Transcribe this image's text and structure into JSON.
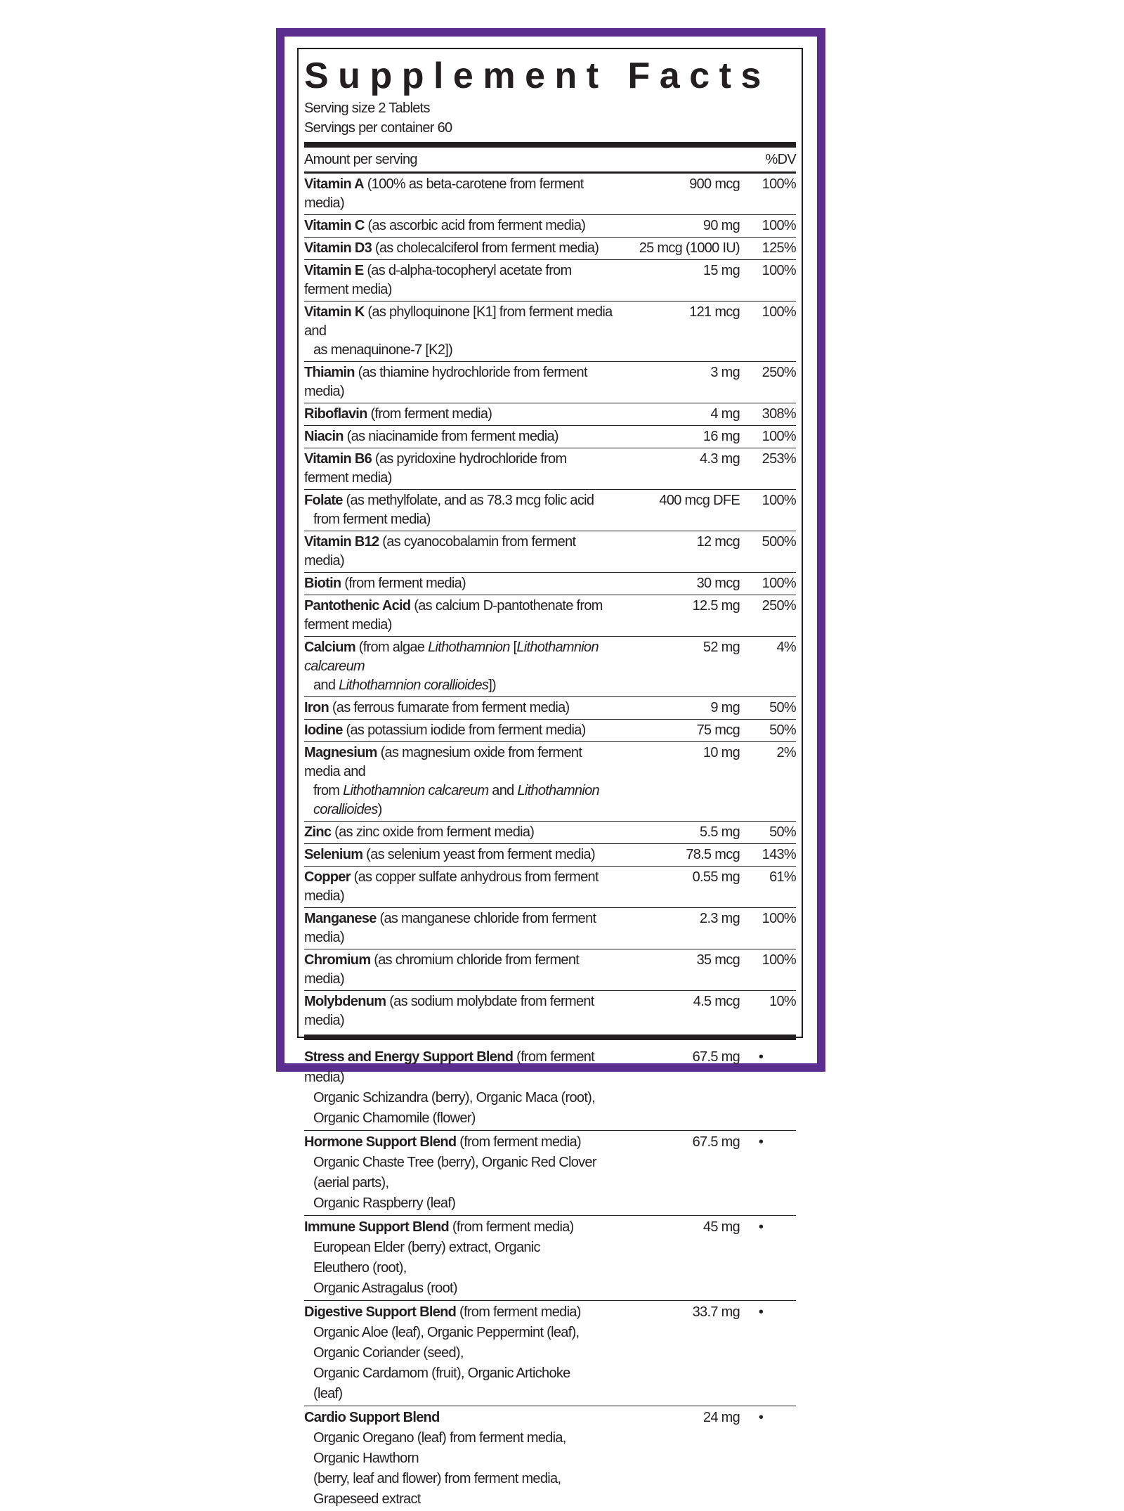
{
  "title": "Supplement Facts",
  "serving_size": "Serving size 2 Tablets",
  "servings_per_container": "Servings per container 60",
  "header": {
    "amount": "Amount per serving",
    "dv": "%DV"
  },
  "colors": {
    "frame": "#5b2d8e",
    "text": "#231f20"
  },
  "nutrients": [
    {
      "name": "Vitamin A",
      "desc": [
        [
          {
            "t": " (100% as beta-carotene from ferment media)"
          }
        ]
      ],
      "amount": "900 mcg",
      "dv": "100%"
    },
    {
      "name": "Vitamin C",
      "desc": [
        [
          {
            "t": " (as ascorbic acid from ferment media)"
          }
        ]
      ],
      "amount": "90 mg",
      "dv": "100%"
    },
    {
      "name": "Vitamin D3",
      "desc": [
        [
          {
            "t": " (as cholecalciferol from ferment media)"
          }
        ]
      ],
      "amount": "25 mcg (1000 IU)",
      "dv": "125%"
    },
    {
      "name": "Vitamin E",
      "desc": [
        [
          {
            "t": " (as d-alpha-tocopheryl acetate from ferment media)"
          }
        ]
      ],
      "amount": "15 mg",
      "dv": "100%"
    },
    {
      "name": "Vitamin K",
      "desc": [
        [
          {
            "t": " (as phylloquinone [K1] from ferment media and"
          }
        ],
        [
          {
            "t": "as menaquinone-7 [K2])"
          }
        ]
      ],
      "amount": "121 mcg",
      "dv": "100%"
    },
    {
      "name": "Thiamin",
      "desc": [
        [
          {
            "t": " (as thiamine hydrochloride from ferment media)"
          }
        ]
      ],
      "amount": "3 mg",
      "dv": "250%"
    },
    {
      "name": "Riboflavin",
      "desc": [
        [
          {
            "t": " (from ferment media)"
          }
        ]
      ],
      "amount": "4 mg",
      "dv": "308%"
    },
    {
      "name": "Niacin",
      "desc": [
        [
          {
            "t": " (as niacinamide from ferment media)"
          }
        ]
      ],
      "amount": "16 mg",
      "dv": "100%"
    },
    {
      "name": "Vitamin B6",
      "desc": [
        [
          {
            "t": " (as pyridoxine hydrochloride from ferment media)"
          }
        ]
      ],
      "amount": "4.3 mg",
      "dv": "253%"
    },
    {
      "name": "Folate",
      "desc": [
        [
          {
            "t": " (as methylfolate, and as 78.3 mcg folic acid"
          }
        ],
        [
          {
            "t": "from ferment media)"
          }
        ]
      ],
      "amount": "400 mcg DFE",
      "dv": "100%"
    },
    {
      "name": "Vitamin B12",
      "desc": [
        [
          {
            "t": " (as cyanocobalamin from ferment media)"
          }
        ]
      ],
      "amount": "12 mcg",
      "dv": "500%"
    },
    {
      "name": "Biotin",
      "desc": [
        [
          {
            "t": " (from ferment media)"
          }
        ]
      ],
      "amount": "30 mcg",
      "dv": "100%"
    },
    {
      "name": "Pantothenic Acid",
      "desc": [
        [
          {
            "t": " (as calcium D-pantothenate from ferment media)"
          }
        ]
      ],
      "amount": "12.5 mg",
      "dv": "250%"
    },
    {
      "name": "Calcium",
      "desc": [
        [
          {
            "t": " (from algae "
          },
          {
            "t": "Lithothamnion",
            "i": true
          },
          {
            "t": " ["
          },
          {
            "t": "Lithothamnion calcareum",
            "i": true
          }
        ],
        [
          {
            "t": "and "
          },
          {
            "t": "Lithothamnion corallioides",
            "i": true
          },
          {
            "t": "])"
          }
        ]
      ],
      "amount": "52 mg",
      "dv": "4%"
    },
    {
      "name": "Iron",
      "desc": [
        [
          {
            "t": " (as ferrous fumarate from ferment media)"
          }
        ]
      ],
      "amount": "9 mg",
      "dv": "50%"
    },
    {
      "name": "Iodine",
      "desc": [
        [
          {
            "t": " (as potassium iodide from ferment media)"
          }
        ]
      ],
      "amount": "75 mcg",
      "dv": "50%"
    },
    {
      "name": "Magnesium",
      "desc": [
        [
          {
            "t": " (as magnesium oxide from ferment media and"
          }
        ],
        [
          {
            "t": "from "
          },
          {
            "t": "Lithothamnion calcareum",
            "i": true
          },
          {
            "t": " and "
          },
          {
            "t": "Lithothamnion corallioides",
            "i": true
          },
          {
            "t": ")"
          }
        ]
      ],
      "amount": "10 mg",
      "dv": "2%"
    },
    {
      "name": "Zinc",
      "desc": [
        [
          {
            "t": " (as zinc oxide from ferment media)"
          }
        ]
      ],
      "amount": "5.5 mg",
      "dv": "50%"
    },
    {
      "name": "Selenium",
      "desc": [
        [
          {
            "t": " (as selenium yeast from ferment media)"
          }
        ]
      ],
      "amount": "78.5 mcg",
      "dv": "143%"
    },
    {
      "name": "Copper",
      "desc": [
        [
          {
            "t": " (as copper sulfate anhydrous from ferment media)"
          }
        ]
      ],
      "amount": "0.55 mg",
      "dv": "61%"
    },
    {
      "name": "Manganese",
      "desc": [
        [
          {
            "t": " (as manganese chloride from ferment media)"
          }
        ]
      ],
      "amount": "2.3 mg",
      "dv": "100%"
    },
    {
      "name": "Chromium",
      "desc": [
        [
          {
            "t": " (as chromium chloride from ferment media)"
          }
        ]
      ],
      "amount": "35 mcg",
      "dv": "100%"
    },
    {
      "name": "Molybdenum",
      "desc": [
        [
          {
            "t": " (as sodium molybdate from ferment media)"
          }
        ]
      ],
      "amount": "4.5 mcg",
      "dv": "10%"
    }
  ],
  "blends": [
    {
      "name": "Stress and Energy Support Blend",
      "note": " (from ferment media)",
      "amount": "67.5 mg",
      "dv": "•",
      "lines": [
        "Organic Schizandra (berry), Organic Maca (root), Organic Chamomile (flower)"
      ]
    },
    {
      "name": "Hormone Support Blend",
      "note": " (from ferment media)",
      "amount": "67.5 mg",
      "dv": "•",
      "lines": [
        "Organic Chaste Tree (berry), Organic Red Clover (aerial parts),",
        "Organic Raspberry (leaf)"
      ]
    },
    {
      "name": "Immune Support Blend",
      "note": " (from ferment media)",
      "amount": "45 mg",
      "dv": "•",
      "lines": [
        "European Elder (berry) extract, Organic Eleuthero (root),",
        "Organic Astragalus (root)"
      ]
    },
    {
      "name": "Digestive Support Blend",
      "note": " (from ferment media)",
      "amount": "33.7 mg",
      "dv": "•",
      "lines": [
        "Organic Aloe (leaf), Organic Peppermint (leaf), Organic Coriander (seed),",
        "Organic Cardamom (fruit), Organic Artichoke (leaf)"
      ]
    },
    {
      "name": "Cardio Support Blend",
      "note": "",
      "amount": "24 mg",
      "dv": "•",
      "lines": [
        "Organic Oregano (leaf) from ferment media, Organic Hawthorn",
        "(berry, leaf and flower) from ferment media, Grapeseed extract"
      ]
    }
  ]
}
